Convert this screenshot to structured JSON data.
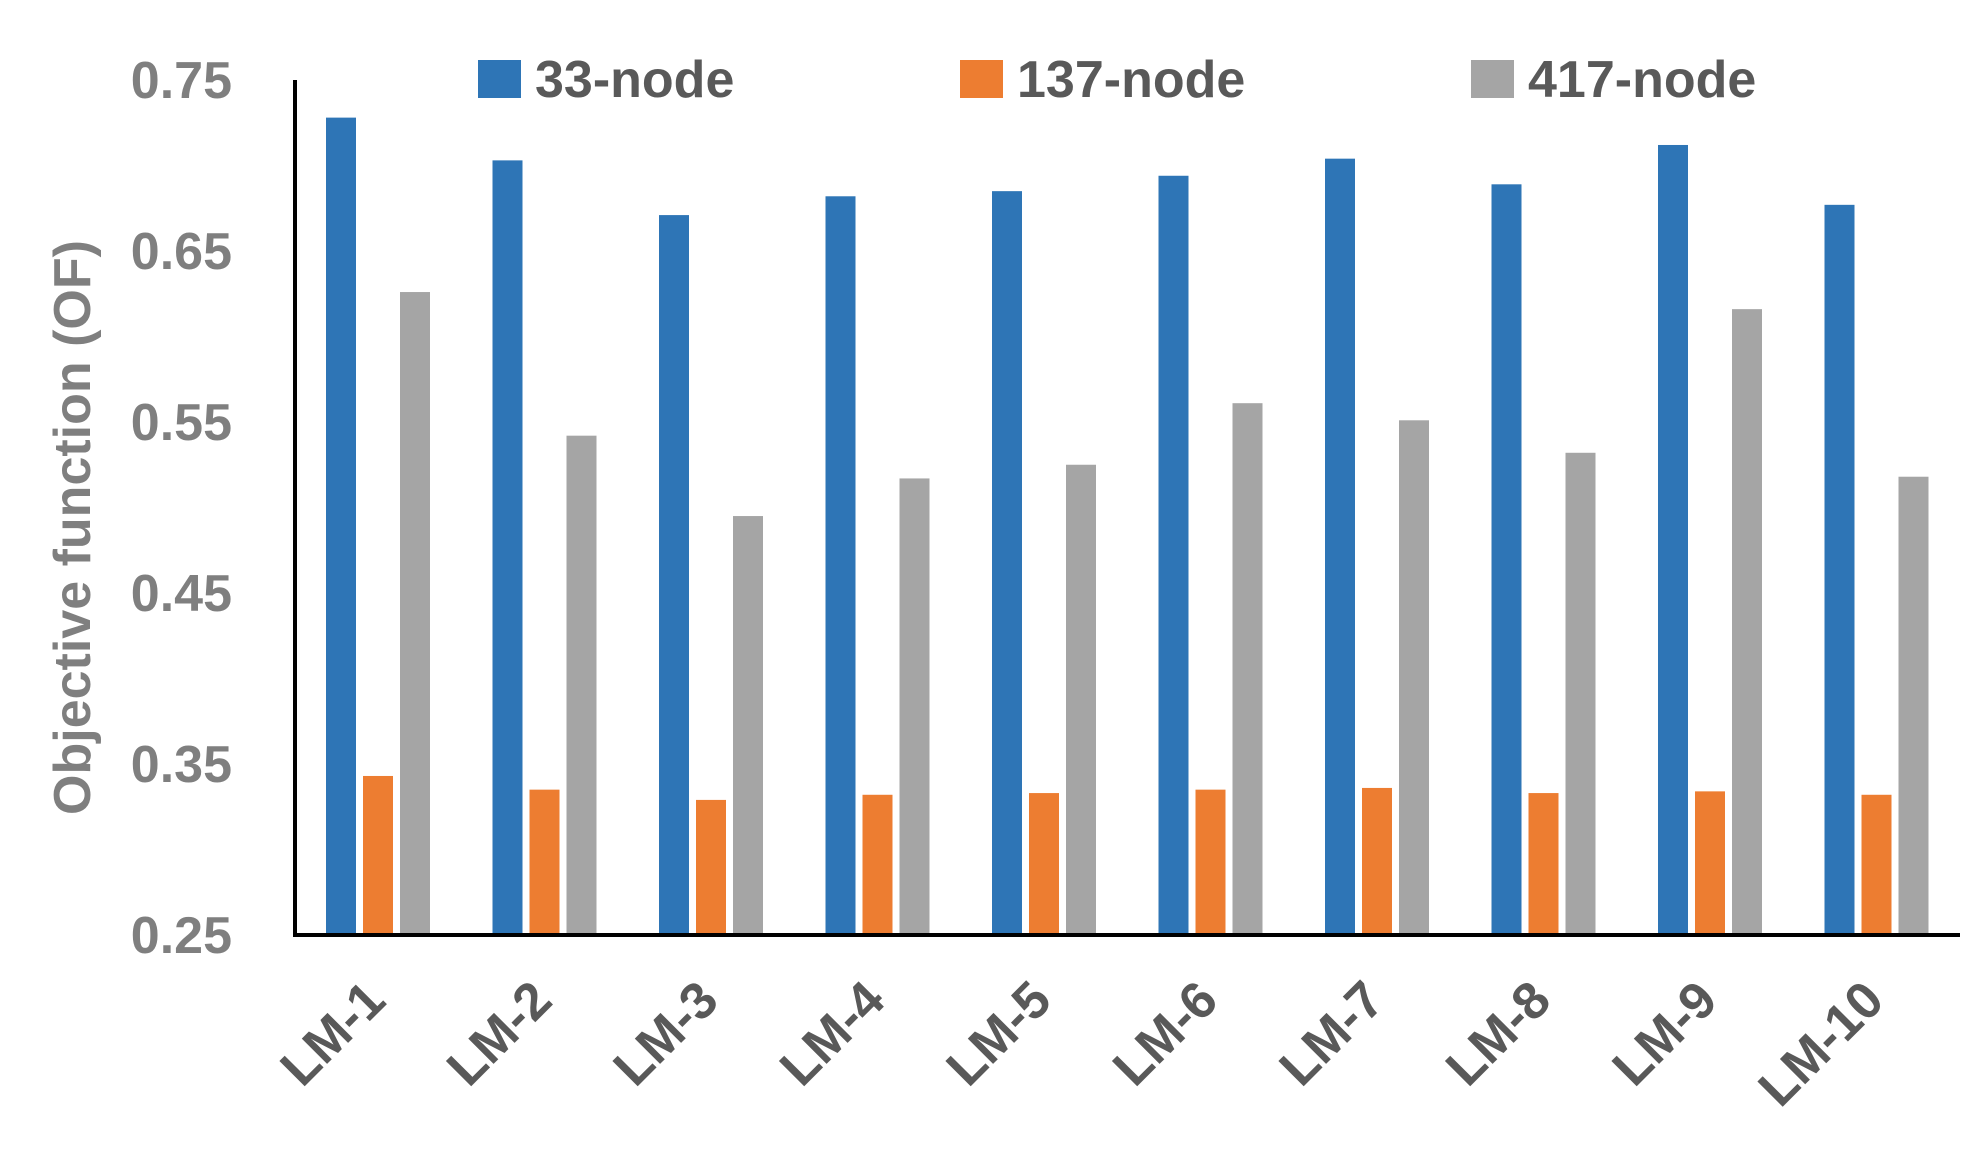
{
  "chart_data": {
    "type": "bar",
    "title": "",
    "xlabel": "",
    "ylabel": "Objective function (OF)",
    "ylim": [
      0.25,
      0.75
    ],
    "yticks": [
      "0.25",
      "0.35",
      "0.45",
      "0.55",
      "0.65",
      "0.75"
    ],
    "categories": [
      "LM-1",
      "LM-2",
      "LM-3",
      "LM-4",
      "LM-5",
      "LM-6",
      "LM-7",
      "LM-8",
      "LM-9",
      "LM-10"
    ],
    "series": [
      {
        "name": "33-node",
        "color": "#2e75b6",
        "values": [
          0.728,
          0.703,
          0.671,
          0.682,
          0.685,
          0.694,
          0.704,
          0.689,
          0.712,
          0.677
        ]
      },
      {
        "name": "137-node",
        "color": "#ed7d31",
        "values": [
          0.343,
          0.335,
          0.329,
          0.332,
          0.333,
          0.335,
          0.336,
          0.333,
          0.334,
          0.332
        ]
      },
      {
        "name": "417-node",
        "color": "#a5a5a5",
        "values": [
          0.626,
          0.542,
          0.495,
          0.517,
          0.525,
          0.561,
          0.551,
          0.532,
          0.616,
          0.518
        ]
      }
    ],
    "legend_position": "top",
    "grid": false
  }
}
